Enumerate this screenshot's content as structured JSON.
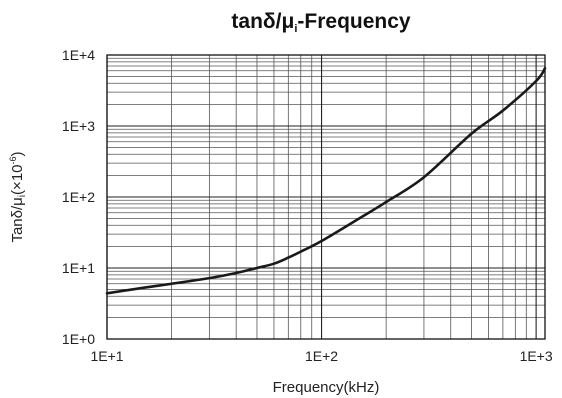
{
  "chart_data": {
    "type": "line",
    "title_main": "tanδ/μ",
    "title_sub": "i",
    "title_rest": "-Frequency",
    "xlabel": "Frequency(kHz)",
    "ylabel_main": "Tanδ/μ",
    "ylabel_sub": "i",
    "ylabel_paren": "(×10",
    "ylabel_exp": "-6",
    "ylabel_close": ")",
    "x_scale": "log",
    "y_scale": "log",
    "xlim": [
      10,
      1100
    ],
    "ylim": [
      1,
      10000
    ],
    "x_ticks": [
      {
        "value": 10,
        "label": "1E+1"
      },
      {
        "value": 100,
        "label": "1E+2"
      },
      {
        "value": 1000,
        "label": "1E+3"
      }
    ],
    "y_ticks": [
      {
        "value": 1,
        "label": "1E+0"
      },
      {
        "value": 10,
        "label": "1E+1"
      },
      {
        "value": 100,
        "label": "1E+2"
      },
      {
        "value": 1000,
        "label": "1E+3"
      },
      {
        "value": 10000,
        "label": "1E+4"
      }
    ],
    "grid": true,
    "series": [
      {
        "color": "#1a1a1a",
        "x": [
          10,
          15,
          20,
          30,
          40,
          50,
          60,
          70,
          80,
          100,
          150,
          200,
          300,
          500,
          700,
          1000,
          1100
        ],
        "y": [
          4.4,
          5.3,
          6.0,
          7.2,
          8.5,
          10.0,
          11.5,
          14.0,
          17.0,
          24.0,
          50.0,
          85.0,
          190.0,
          780.0,
          1650.0,
          4300.0,
          6500.0
        ]
      }
    ]
  }
}
